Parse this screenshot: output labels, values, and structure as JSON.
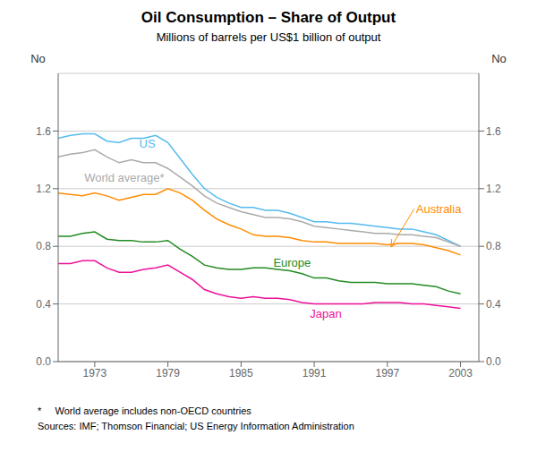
{
  "chart_data": {
    "type": "line",
    "title": "Oil Consumption – Share of Output",
    "subtitle": "Millions of barrels per US$1 billion of output",
    "footnotes": [
      "*     World average includes non-OECD countries",
      "Sources: IMF; Thomson Financial; US Energy Information Administration"
    ],
    "ylabel": "No",
    "y2label": "No",
    "x": [
      1970,
      1971,
      1972,
      1973,
      1974,
      1975,
      1976,
      1977,
      1978,
      1979,
      1980,
      1981,
      1982,
      1983,
      1984,
      1985,
      1986,
      1987,
      1988,
      1989,
      1990,
      1991,
      1992,
      1993,
      1994,
      1995,
      1996,
      1997,
      1998,
      1999,
      2000,
      2001,
      2002,
      2003
    ],
    "series": [
      {
        "name": "US",
        "color": "#55BBEE",
        "values": [
          1.55,
          1.57,
          1.58,
          1.58,
          1.53,
          1.52,
          1.55,
          1.55,
          1.57,
          1.52,
          1.41,
          1.3,
          1.2,
          1.14,
          1.1,
          1.07,
          1.07,
          1.05,
          1.05,
          1.03,
          1.0,
          0.97,
          0.97,
          0.96,
          0.96,
          0.95,
          0.94,
          0.93,
          0.92,
          0.92,
          0.9,
          0.88,
          0.84,
          0.8
        ]
      },
      {
        "name": "World average*",
        "color": "#AAAAAA",
        "values": [
          1.42,
          1.44,
          1.45,
          1.47,
          1.42,
          1.38,
          1.4,
          1.38,
          1.38,
          1.34,
          1.28,
          1.22,
          1.15,
          1.1,
          1.07,
          1.04,
          1.02,
          1.0,
          1.0,
          0.99,
          0.97,
          0.94,
          0.93,
          0.92,
          0.91,
          0.9,
          0.89,
          0.89,
          0.88,
          0.88,
          0.87,
          0.86,
          0.83,
          0.8
        ]
      },
      {
        "name": "Australia",
        "color": "#FF8C00",
        "values": [
          1.17,
          1.16,
          1.15,
          1.17,
          1.15,
          1.12,
          1.14,
          1.16,
          1.16,
          1.2,
          1.17,
          1.12,
          1.05,
          0.99,
          0.95,
          0.92,
          0.88,
          0.87,
          0.87,
          0.86,
          0.84,
          0.83,
          0.83,
          0.82,
          0.82,
          0.82,
          0.82,
          0.81,
          0.82,
          0.82,
          0.81,
          0.79,
          0.77,
          0.74
        ]
      },
      {
        "name": "Europe",
        "color": "#228B22",
        "values": [
          0.87,
          0.87,
          0.89,
          0.9,
          0.85,
          0.84,
          0.84,
          0.83,
          0.83,
          0.84,
          0.78,
          0.73,
          0.67,
          0.65,
          0.64,
          0.64,
          0.65,
          0.65,
          0.64,
          0.63,
          0.61,
          0.58,
          0.58,
          0.56,
          0.55,
          0.55,
          0.55,
          0.54,
          0.54,
          0.54,
          0.53,
          0.52,
          0.49,
          0.47
        ]
      },
      {
        "name": "Japan",
        "color": "#EE1199",
        "values": [
          0.68,
          0.68,
          0.7,
          0.7,
          0.65,
          0.62,
          0.62,
          0.64,
          0.65,
          0.67,
          0.62,
          0.57,
          0.5,
          0.47,
          0.45,
          0.44,
          0.45,
          0.44,
          0.44,
          0.43,
          0.41,
          0.4,
          0.4,
          0.4,
          0.4,
          0.4,
          0.41,
          0.41,
          0.41,
          0.4,
          0.4,
          0.39,
          0.38,
          0.37
        ]
      }
    ],
    "annotations": [
      {
        "text": "US",
        "x": 1976.5,
        "y": 1.515
      },
      {
        "text": "World average*",
        "x": 1972.0,
        "y": 1.28
      },
      {
        "text": "Australia",
        "x": 1999.2,
        "y": 1.06,
        "arrow_x": 1997.3,
        "arrow_y": 0.795
      },
      {
        "text": "Europe",
        "x": 1987.5,
        "y": 0.685
      },
      {
        "text": "Japan",
        "x": 1990.5,
        "y": 0.335
      }
    ],
    "xlim": [
      1970,
      2004.5
    ],
    "xticks": [
      1973,
      1979,
      1985,
      1991,
      1997,
      2003
    ],
    "ylim": [
      0.0,
      2.0
    ],
    "yticks": [
      {
        "value": 0.0,
        "label": "0.0"
      },
      0.4,
      0.8,
      1.2,
      1.6
    ],
    "y2lim": [
      0.0,
      2.0
    ],
    "y2ticks": [
      {
        "value": 0.0,
        "label": "0.0"
      },
      0.4,
      0.8,
      1.2,
      1.6
    ],
    "grid": true
  }
}
